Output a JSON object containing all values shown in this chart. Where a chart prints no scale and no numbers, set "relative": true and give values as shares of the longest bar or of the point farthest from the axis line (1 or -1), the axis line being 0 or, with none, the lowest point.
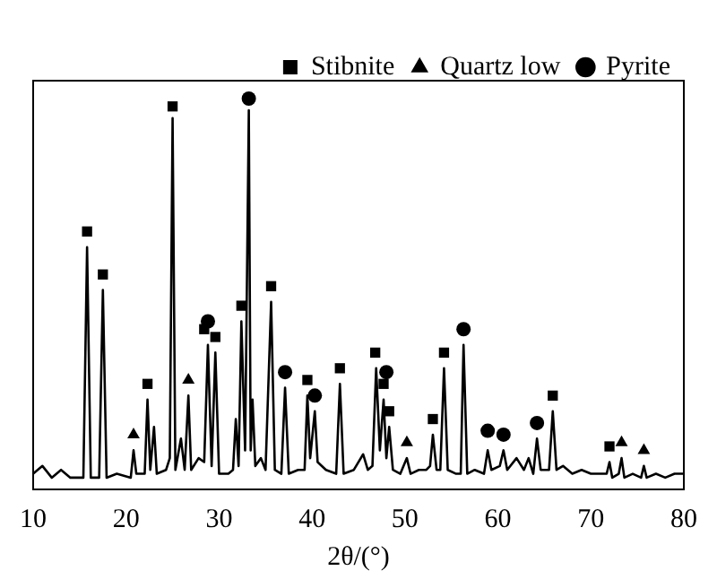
{
  "chart_data": {
    "type": "line",
    "relative": true,
    "xlabel": "2θ/(°)",
    "xlim": [
      10,
      80
    ],
    "xticks": [
      10,
      20,
      30,
      40,
      50,
      60,
      70,
      80
    ],
    "grid": false,
    "legend": "top right",
    "series": [
      {
        "type": "line",
        "color": "#000000",
        "marker": "none",
        "x": [
          10,
          11,
          12,
          13,
          14,
          15.4,
          15.8,
          16.2,
          17.1,
          17.5,
          17.9,
          19,
          20.5,
          20.8,
          21.1,
          22.0,
          22.3,
          22.6,
          23.0,
          23.3,
          24.3,
          24.7,
          25.0,
          25.3,
          25.9,
          26.3,
          26.7,
          27.0,
          27.8,
          28.4,
          28.8,
          29.2,
          29.6,
          30.0,
          31.0,
          31.5,
          31.8,
          32.1,
          32.4,
          32.8,
          33.2,
          33.4,
          33.6,
          33.9,
          34.5,
          35.0,
          35.6,
          36.0,
          36.7,
          37.1,
          37.5,
          38.5,
          39.2,
          39.5,
          39.8,
          40.3,
          40.6,
          41.5,
          42.6,
          43.0,
          43.4,
          44.5,
          45.5,
          46.0,
          46.5,
          46.9,
          47.3,
          47.7,
          48.0,
          48.3,
          48.7,
          49.5,
          50.2,
          50.6,
          51.5,
          52.3,
          52.7,
          53.0,
          53.4,
          53.8,
          54.2,
          54.6,
          55.5,
          56.0,
          56.3,
          56.7,
          57.5,
          58.5,
          58.9,
          59.3,
          60.2,
          60.6,
          61.0,
          62.0,
          62.8,
          63.3,
          63.8,
          64.2,
          64.6,
          65.5,
          65.9,
          66.3,
          67.0,
          68.0,
          69.0,
          70.0,
          71.0,
          71.7,
          72.0,
          72.3,
          73.0,
          73.3,
          73.6,
          74.5,
          75.4,
          75.7,
          76.0,
          77.0,
          78.0,
          79.0,
          80.0
        ],
        "values": [
          0.04,
          0.06,
          0.03,
          0.05,
          0.03,
          0.03,
          0.62,
          0.03,
          0.03,
          0.51,
          0.03,
          0.04,
          0.03,
          0.1,
          0.04,
          0.04,
          0.23,
          0.05,
          0.16,
          0.04,
          0.05,
          0.08,
          0.95,
          0.05,
          0.13,
          0.05,
          0.24,
          0.05,
          0.08,
          0.07,
          0.37,
          0.06,
          0.35,
          0.04,
          0.04,
          0.05,
          0.18,
          0.06,
          0.43,
          0.1,
          0.97,
          0.1,
          0.23,
          0.06,
          0.08,
          0.05,
          0.48,
          0.05,
          0.04,
          0.26,
          0.04,
          0.05,
          0.05,
          0.24,
          0.08,
          0.2,
          0.07,
          0.05,
          0.04,
          0.27,
          0.04,
          0.05,
          0.09,
          0.05,
          0.06,
          0.31,
          0.1,
          0.23,
          0.08,
          0.16,
          0.05,
          0.04,
          0.08,
          0.04,
          0.05,
          0.05,
          0.06,
          0.14,
          0.05,
          0.05,
          0.31,
          0.05,
          0.04,
          0.04,
          0.37,
          0.04,
          0.05,
          0.04,
          0.1,
          0.05,
          0.06,
          0.1,
          0.05,
          0.08,
          0.05,
          0.08,
          0.04,
          0.13,
          0.05,
          0.05,
          0.2,
          0.05,
          0.06,
          0.04,
          0.05,
          0.04,
          0.04,
          0.04,
          0.07,
          0.03,
          0.04,
          0.08,
          0.03,
          0.04,
          0.03,
          0.06,
          0.03,
          0.04,
          0.03,
          0.04,
          0.04
        ]
      },
      {
        "type": "scatter",
        "name": "Stibnite",
        "color": "#000000",
        "marker": "square",
        "x": [
          15.8,
          17.5,
          22.3,
          25.0,
          28.4,
          29.6,
          32.4,
          35.6,
          39.5,
          43.0,
          46.8,
          47.7,
          48.3,
          53.0,
          54.2,
          65.9,
          72.0
        ],
        "values": [
          0.66,
          0.55,
          0.27,
          0.98,
          0.41,
          0.39,
          0.47,
          0.52,
          0.28,
          0.31,
          0.35,
          0.27,
          0.2,
          0.18,
          0.35,
          0.24,
          0.11
        ]
      },
      {
        "type": "scatter",
        "name": "Quartz low",
        "color": "#000000",
        "marker": "triangle",
        "x": [
          20.8,
          26.7,
          50.2,
          73.3,
          75.7
        ],
        "values": [
          0.14,
          0.28,
          0.12,
          0.12,
          0.1
        ]
      },
      {
        "type": "scatter",
        "name": "Pyrite",
        "color": "#000000",
        "marker": "circle",
        "x": [
          28.8,
          33.2,
          37.1,
          40.3,
          48.0,
          56.3,
          58.9,
          60.6,
          64.2
        ],
        "values": [
          0.43,
          1.0,
          0.3,
          0.24,
          0.3,
          0.41,
          0.15,
          0.14,
          0.17
        ]
      }
    ]
  }
}
